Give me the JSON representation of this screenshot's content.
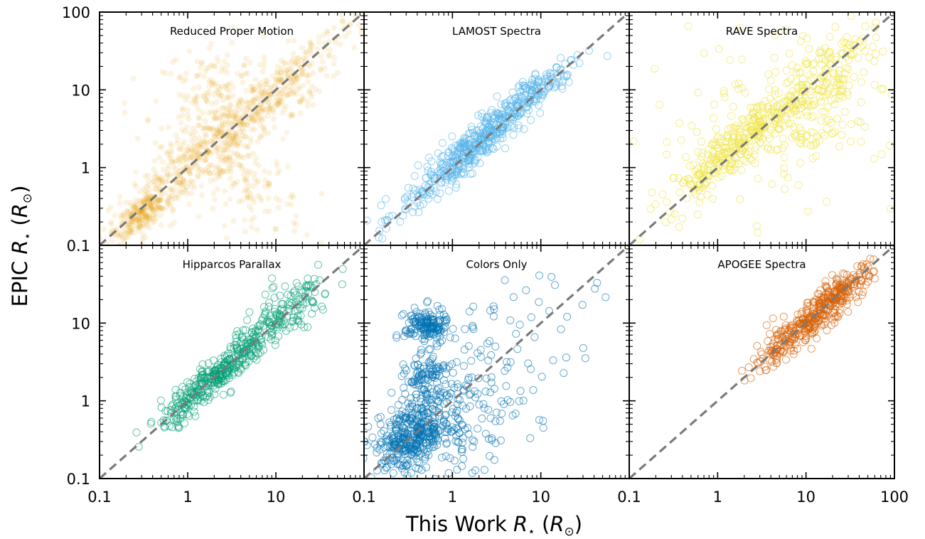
{
  "chart_data": {
    "type": "scatter",
    "layout": {
      "rows": 2,
      "cols": 3
    },
    "xlabel": {
      "prefix": "This Work ",
      "var": "R",
      "sub": "⋆",
      "unit_open": " (",
      "unit": "R",
      "unit_sub": "⊙",
      "unit_close": ")"
    },
    "ylabel": {
      "prefix": "EPIC ",
      "var": "R",
      "sub": "⋆",
      "unit_open": " (",
      "unit": "R",
      "unit_sub": "⊙",
      "unit_close": ")"
    },
    "xscale": "log",
    "yscale": "log",
    "xlim": [
      0.1,
      100
    ],
    "ylim": [
      0.1,
      100
    ],
    "x_tick_labels": [
      "0.1",
      "1",
      "10",
      "100"
    ],
    "y_tick_labels": [
      "0.1",
      "1",
      "10",
      "100"
    ],
    "one_to_one_line": {
      "style": "dashed",
      "color": "#7a7a7a"
    },
    "panels": [
      {
        "name": "Reduced Proper Motion",
        "color": "#E69F00",
        "marker": "dot",
        "clusters": [
          {
            "x": 1.0,
            "y": 1.0,
            "spread": 0.5,
            "corr": 0.9,
            "count": 400
          },
          {
            "x": 0.3,
            "y": 0.25,
            "spread": 0.15,
            "corr": 0.7,
            "count": 200
          },
          {
            "x": 2.0,
            "y": 9.0,
            "spread": 0.35,
            "corr": 0.2,
            "count": 180
          },
          {
            "x": 8.0,
            "y": 6.0,
            "spread": 0.35,
            "corr": 0.8,
            "count": 180
          },
          {
            "x": 4.0,
            "y": 0.75,
            "spread": 0.35,
            "corr": -0.6,
            "count": 160
          },
          {
            "x": 20.0,
            "y": 20.0,
            "spread": 0.4,
            "corr": 0.9,
            "count": 140
          }
        ]
      },
      {
        "name": "LAMOST Spectra",
        "color": "#56B4E9",
        "marker": "circle",
        "clusters": [
          {
            "x": 1.5,
            "y": 1.6,
            "spread": 0.38,
            "corr": 0.93,
            "count": 420
          },
          {
            "x": 8.0,
            "y": 9.0,
            "spread": 0.3,
            "corr": 0.9,
            "count": 140
          }
        ]
      },
      {
        "name": "RAVE Spectra",
        "color": "#F0E442",
        "marker": "circle",
        "clusters": [
          {
            "x": 1.5,
            "y": 1.8,
            "spread": 0.38,
            "corr": 0.9,
            "count": 300
          },
          {
            "x": 15.0,
            "y": 15.0,
            "spread": 0.35,
            "corr": 0.6,
            "count": 160
          },
          {
            "x": 8.0,
            "y": 4.0,
            "spread": 0.3,
            "corr": 0.3,
            "count": 90
          },
          {
            "x": 5.0,
            "y": 5.0,
            "spread": 0.75,
            "corr": 0.0,
            "count": 90
          }
        ]
      },
      {
        "name": "Hipparcos Parallax",
        "color": "#009E73",
        "marker": "circle",
        "clusters": [
          {
            "x": 2.0,
            "y": 2.0,
            "spread": 0.3,
            "corr": 0.92,
            "count": 340
          },
          {
            "x": 12.0,
            "y": 12.0,
            "spread": 0.3,
            "corr": 0.8,
            "count": 160
          }
        ]
      },
      {
        "name": "Colors Only",
        "color": "#0072B2",
        "marker": "circle",
        "clusters": [
          {
            "x": 0.35,
            "y": 0.35,
            "spread": 0.22,
            "corr": 0.4,
            "count": 380
          },
          {
            "x": 0.5,
            "y": 9.0,
            "spread": 0.12,
            "corr": 0.0,
            "count": 160
          },
          {
            "x": 0.5,
            "y": 2.0,
            "spread": 0.12,
            "corr": 0.0,
            "count": 90
          },
          {
            "x": 1.2,
            "y": 0.7,
            "spread": 0.35,
            "corr": 0.2,
            "count": 120
          },
          {
            "x": 4.0,
            "y": 4.0,
            "spread": 0.6,
            "corr": 0.6,
            "count": 90
          }
        ]
      },
      {
        "name": "APOGEE Spectra",
        "color": "#D55E00",
        "marker": "circle",
        "clusters": [
          {
            "x": 10.0,
            "y": 10.0,
            "spread": 0.3,
            "corr": 0.9,
            "count": 320
          },
          {
            "x": 25.0,
            "y": 25.0,
            "spread": 0.18,
            "corr": 0.8,
            "count": 100
          }
        ]
      }
    ]
  }
}
